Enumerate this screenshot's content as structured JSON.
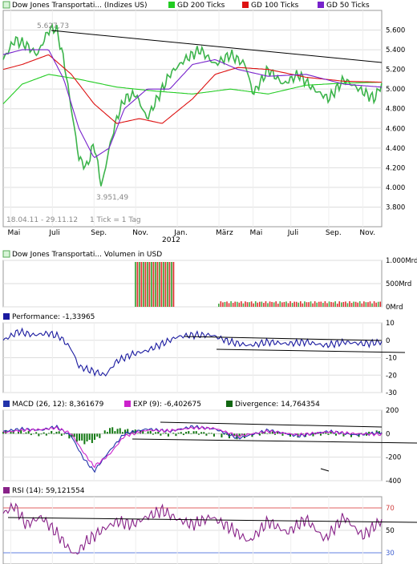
{
  "chart_data": [
    {
      "type": "line",
      "panel": "price",
      "legend": [
        {
          "name": "Dow Jones Transportati... (Indizes US)",
          "color": "#3cb44b",
          "swatch": "#d8f5d8"
        },
        {
          "name": "GD 200 Ticks",
          "color": "#22cc22",
          "swatch": "#22cc22"
        },
        {
          "name": "GD 100 Ticks",
          "color": "#dd1111",
          "swatch": "#dd1111"
        },
        {
          "name": "GD 50 Ticks",
          "color": "#7722cc",
          "swatch": "#7722cc"
        }
      ],
      "y_ticks": [
        "5.600",
        "5.400",
        "5.200",
        "5.000",
        "4.800",
        "4.600",
        "4.400",
        "4.200",
        "4.000",
        "3.800"
      ],
      "ylim": [
        3600,
        5800
      ],
      "x_ticks": [
        "Mai",
        "Juli",
        "Sep.",
        "Nov.",
        "Jan.",
        "März",
        "Mai",
        "Juli",
        "Sep.",
        "Nov."
      ],
      "x_year_label": "2012",
      "annotations": {
        "high": "5.627,73",
        "low": "3.951,49",
        "range": "18.04.11 - 29.11.12",
        "tick_info": "1 Tick = 1 Tag"
      },
      "series": [
        {
          "name": "Dow Jones Transportati... (Indizes US)",
          "x": [
            0,
            0.03,
            0.06,
            0.09,
            0.12,
            0.14,
            0.16,
            0.18,
            0.2,
            0.22,
            0.24,
            0.26,
            0.28,
            0.3,
            0.32,
            0.35,
            0.38,
            0.42,
            0.44,
            0.48,
            0.52,
            0.56,
            0.6,
            0.64,
            0.66,
            0.7,
            0.74,
            0.78,
            0.82,
            0.86,
            0.9,
            0.94,
            0.98,
            1
          ],
          "values": [
            5300,
            5500,
            5450,
            5350,
            5600,
            5620,
            5300,
            4800,
            4300,
            4200,
            4450,
            4000,
            4400,
            4700,
            4900,
            4950,
            4700,
            5000,
            5150,
            5300,
            5400,
            5250,
            5350,
            5250,
            4950,
            5200,
            5050,
            5150,
            5000,
            4900,
            5100,
            5000,
            4900,
            5050
          ]
        },
        {
          "name": "GD 200 Ticks",
          "x": [
            0,
            0.05,
            0.12,
            0.2,
            0.3,
            0.4,
            0.5,
            0.6,
            0.7,
            0.8,
            0.9,
            1
          ],
          "values": [
            4850,
            5050,
            5150,
            5100,
            5020,
            4980,
            4950,
            5000,
            4950,
            5040,
            5060,
            5070
          ]
        },
        {
          "name": "GD 100 Ticks",
          "x": [
            0,
            0.05,
            0.12,
            0.18,
            0.24,
            0.3,
            0.36,
            0.42,
            0.5,
            0.56,
            0.62,
            0.7,
            0.8,
            0.9,
            1
          ],
          "values": [
            5200,
            5250,
            5350,
            5150,
            4850,
            4650,
            4700,
            4650,
            4900,
            5150,
            5220,
            5200,
            5120,
            5080,
            5070
          ]
        },
        {
          "name": "GD 50 Ticks",
          "x": [
            0,
            0.05,
            0.12,
            0.16,
            0.2,
            0.24,
            0.28,
            0.32,
            0.38,
            0.44,
            0.5,
            0.56,
            0.62,
            0.7,
            0.8,
            0.9,
            1
          ],
          "values": [
            5350,
            5400,
            5400,
            5100,
            4600,
            4300,
            4400,
            4800,
            5000,
            5000,
            5250,
            5300,
            5200,
            5130,
            5150,
            5050,
            5020
          ]
        }
      ]
    },
    {
      "type": "bar",
      "panel": "volume",
      "legend": [
        {
          "name": "Dow Jones Transportati... Volumen in USD",
          "swatch": "#d8f5d8"
        }
      ],
      "y_ticks": [
        "1.000Mrd",
        "500Mrd",
        "0Mrd"
      ],
      "ylim": [
        0,
        1000
      ]
    },
    {
      "type": "line",
      "panel": "performance",
      "legend": [
        {
          "name": "Performance: -1,33965",
          "color": "#1a1aa0"
        }
      ],
      "y_ticks": [
        "10",
        "0",
        "-10",
        "-20",
        "-30"
      ],
      "ylim": [
        -30,
        10
      ],
      "series": [
        {
          "name": "Performance: -1,33965",
          "x": [
            0,
            0.04,
            0.08,
            0.12,
            0.15,
            0.18,
            0.2,
            0.24,
            0.27,
            0.3,
            0.34,
            0.38,
            0.42,
            0.46,
            0.5,
            0.55,
            0.6,
            0.65,
            0.7,
            0.75,
            0.8,
            0.85,
            0.9,
            0.95,
            1
          ],
          "values": [
            0,
            5,
            3,
            4,
            2,
            -5,
            -15,
            -18,
            -20,
            -12,
            -8,
            -6,
            -2,
            2,
            3,
            3,
            -1,
            -3,
            -1,
            -2,
            -1,
            -3,
            -1,
            -2,
            -1
          ]
        }
      ]
    },
    {
      "type": "line",
      "panel": "macd",
      "legend": [
        {
          "name": "MACD (26, 12): 8,361679",
          "color": "#2233aa",
          "swatch": "#2233aa"
        },
        {
          "name": "EXP (9): -6,402675",
          "color": "#cc22cc",
          "swatch": "#cc22cc"
        },
        {
          "name": "Divergence: 14,764354",
          "color": "#116611",
          "swatch": "#116611"
        }
      ],
      "y_ticks": [
        "200",
        "0",
        "-200",
        "-400"
      ],
      "ylim": [
        -400,
        200
      ],
      "series": [
        {
          "name": "MACD (26, 12): 8,361679",
          "x": [
            0,
            0.05,
            0.1,
            0.14,
            0.18,
            0.21,
            0.24,
            0.28,
            0.32,
            0.38,
            0.44,
            0.5,
            0.56,
            0.62,
            0.7,
            0.78,
            0.86,
            0.93,
            1
          ],
          "values": [
            20,
            40,
            30,
            60,
            -20,
            -200,
            -320,
            -150,
            0,
            40,
            20,
            60,
            40,
            -40,
            30,
            -20,
            20,
            -10,
            8
          ]
        },
        {
          "name": "EXP (9): -6,402675",
          "x": [
            0,
            0.05,
            0.1,
            0.14,
            0.18,
            0.21,
            0.24,
            0.28,
            0.32,
            0.38,
            0.44,
            0.5,
            0.56,
            0.62,
            0.7,
            0.78,
            0.86,
            0.93,
            1
          ],
          "values": [
            10,
            30,
            35,
            50,
            0,
            -150,
            -280,
            -180,
            -20,
            30,
            25,
            50,
            45,
            -20,
            20,
            -10,
            15,
            0,
            -6
          ]
        }
      ]
    },
    {
      "type": "line",
      "panel": "rsi",
      "legend": [
        {
          "name": "RSI (14): 59,121554",
          "color": "#882288",
          "swatch": "#882288"
        }
      ],
      "y_ticks": [
        "70",
        "50",
        "30"
      ],
      "ylim": [
        20,
        80
      ],
      "series": [
        {
          "name": "RSI (14): 59,121554",
          "x": [
            0,
            0.03,
            0.06,
            0.1,
            0.14,
            0.17,
            0.19,
            0.22,
            0.26,
            0.3,
            0.34,
            0.38,
            0.42,
            0.46,
            0.5,
            0.55,
            0.6,
            0.65,
            0.7,
            0.75,
            0.8,
            0.85,
            0.9,
            0.95,
            1
          ],
          "values": [
            65,
            72,
            55,
            62,
            48,
            35,
            28,
            40,
            50,
            58,
            55,
            62,
            68,
            60,
            55,
            62,
            52,
            40,
            58,
            48,
            60,
            42,
            62,
            45,
            59
          ]
        }
      ]
    }
  ]
}
